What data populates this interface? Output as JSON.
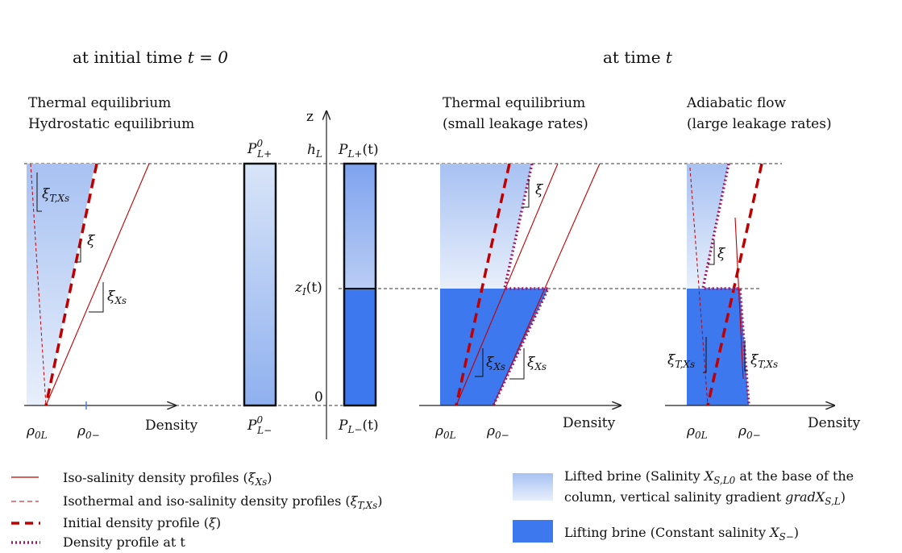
{
  "headings": {
    "initial_prefix": "at initial time ",
    "initial_eq": "t = 0",
    "later_prefix": "at time ",
    "later_var": "t"
  },
  "panels": {
    "left_line1": "Thermal equilibrium",
    "left_line2": "Hydrostatic equilibrium",
    "mid_line1": "Thermal equilibrium",
    "mid_line2": "(small leakage rates)",
    "right_line1": "Adiabatic flow",
    "right_line2": "(large leakage rates)"
  },
  "axes": {
    "z": "z",
    "density": "Density",
    "h_base": "h",
    "h_sub": "L",
    "zi_base": "z",
    "zi_sub": "I",
    "zi_arg": "(t)",
    "zero": "0"
  },
  "pressures": {
    "p0_plus_base": "P",
    "p0_plus_sup": "0",
    "p0_plus_sub": "L+",
    "p0_minus_base": "P",
    "p0_minus_sup": "0",
    "p0_minus_sub": "L−",
    "pt_plus_base": "P",
    "pt_plus_sub": "L+",
    "pt_plus_arg": "(t)",
    "pt_minus_base": "P",
    "pt_minus_sub": "L−",
    "pt_minus_arg": "(t)"
  },
  "symbols": {
    "rho": "ρ",
    "rho_0L_sub": "0L",
    "rho_0m_sub": "0−",
    "xi": "ξ",
    "xi_TXs_sub": "T,Xs",
    "xi_Xs_sub": "Xs"
  },
  "legend": {
    "iso_salinity_text": "Iso-salinity density profiles (",
    "iso_thermal_text": "Isothermal and iso-salinity density profiles (",
    "initial_text": "Initial density profile (",
    "profile_t_text": "Density profile at t",
    "close_paren": ")",
    "lifted_text1": "Lifted brine (Salinity ",
    "lifted_var": "X",
    "lifted_var_sub": "S,L0",
    "lifted_text2": " at the base of the",
    "lifted_text3": "column, vertical salinity gradient ",
    "lifted_grad": "gradX",
    "lifted_grad_sub": "S,L",
    "lifted_text4": ")",
    "lifting_text1": "Lifting brine (Constant salinity ",
    "lifting_var": "X",
    "lifting_var_sub": "S−",
    "lifting_text2": ")"
  },
  "colors": {
    "light_brine_top": "#a9c3f2",
    "light_brine_bottom": "#e6eefb",
    "dark_brine": "#3d78ee",
    "profile_red": "#c00000"
  }
}
